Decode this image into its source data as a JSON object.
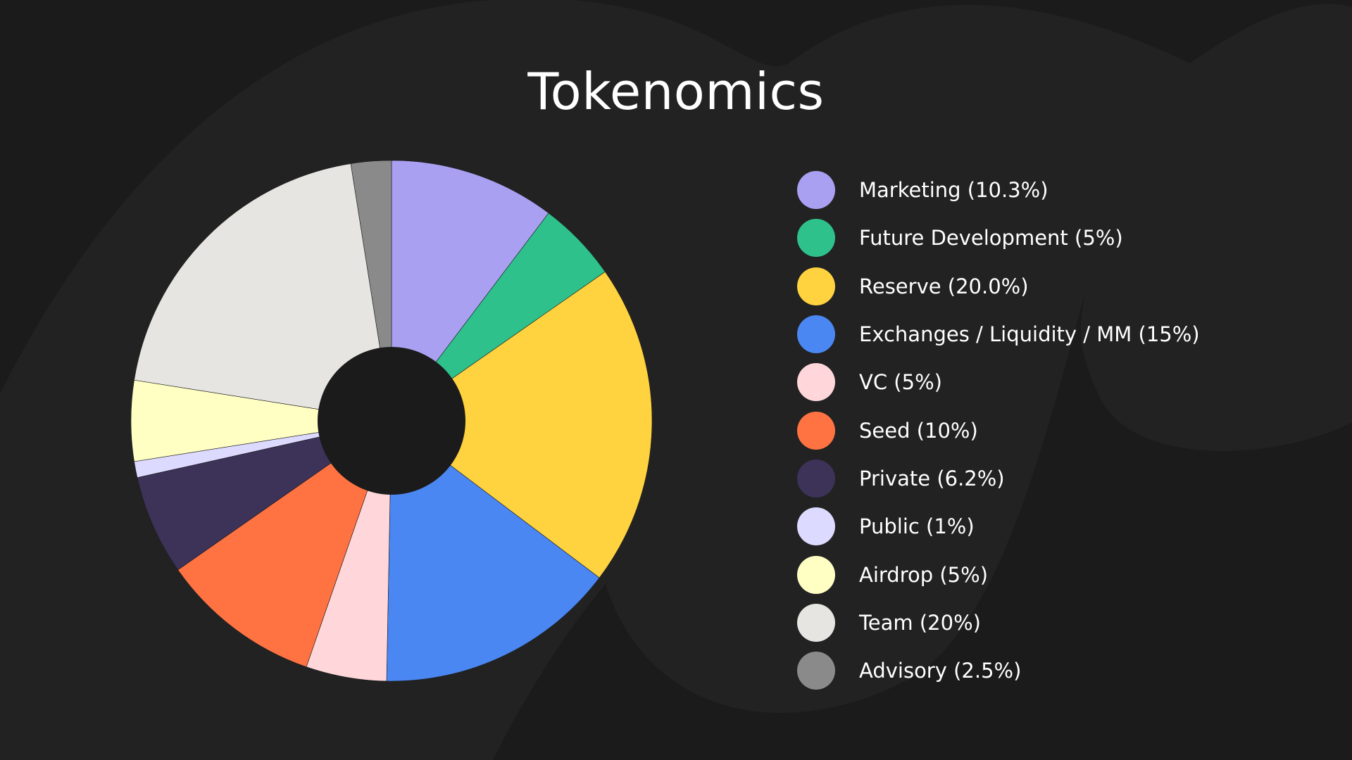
{
  "chart_data": {
    "type": "pie",
    "title": "Tokenomics",
    "donut": true,
    "slices": [
      {
        "label": "Marketing (10.3%)",
        "value": 10.3,
        "color": "#aaa0f2"
      },
      {
        "label": "Future Development (5%)",
        "value": 5,
        "color": "#2ec18c"
      },
      {
        "label": "Reserve (20.0%)",
        "value": 20.0,
        "color": "#ffd23f"
      },
      {
        "label": "Exchanges / Liquidity / MM (15%)",
        "value": 15,
        "color": "#4a87f2"
      },
      {
        "label": "VC (5%)",
        "value": 5,
        "color": "#ffd6da"
      },
      {
        "label": "Seed (10%)",
        "value": 10,
        "color": "#ff7242"
      },
      {
        "label": "Private (6.2%)",
        "value": 6.2,
        "color": "#3d3258"
      },
      {
        "label": "Public (1%)",
        "value": 1,
        "color": "#dddaff"
      },
      {
        "label": "Airdrop (5%)",
        "value": 5,
        "color": "#ffffc4"
      },
      {
        "label": "Team (20%)",
        "value": 20,
        "color": "#e6e5e1"
      },
      {
        "label": "Advisory (2.5%)",
        "value": 2.5,
        "color": "#8a8a8a"
      }
    ],
    "legend_position": "right",
    "start_angle": "top",
    "direction": "clockwise"
  },
  "colors": {
    "background": "#1b1b1b",
    "background_shape": "#242424",
    "donut_hole": "#1b1b1b",
    "text": "#ffffff"
  }
}
